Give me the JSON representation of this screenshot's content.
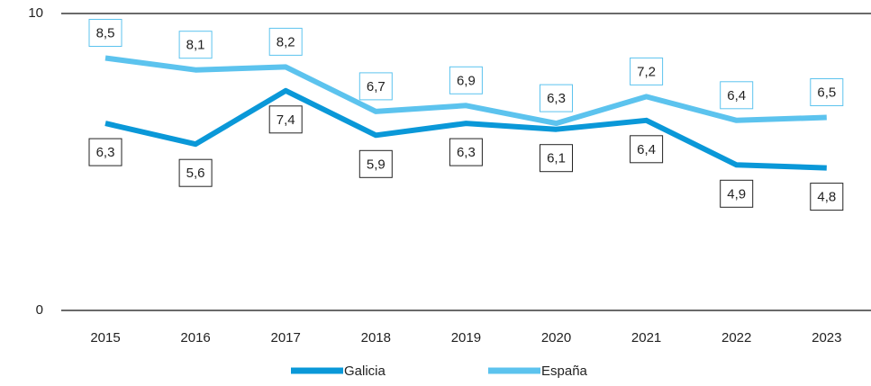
{
  "chart_data": {
    "type": "line",
    "categories": [
      "2015",
      "2016",
      "2017",
      "2018",
      "2019",
      "2020",
      "2021",
      "2022",
      "2023"
    ],
    "series": [
      {
        "name": "Galicia",
        "color": "#0a98d8",
        "values": [
          6.3,
          5.6,
          7.4,
          5.9,
          6.3,
          6.1,
          6.4,
          4.9,
          4.8
        ],
        "value_labels": [
          "6,3",
          "5,6",
          "7,4",
          "5,9",
          "6,3",
          "6,1",
          "6,4",
          "4,9",
          "4,8"
        ]
      },
      {
        "name": "España",
        "color": "#5cc3ee",
        "values": [
          8.5,
          8.1,
          8.2,
          6.7,
          6.9,
          6.3,
          7.2,
          6.4,
          6.5
        ],
        "value_labels": [
          "8,5",
          "8,1",
          "8,2",
          "6,7",
          "6,9",
          "6,3",
          "7,2",
          "6,4",
          "6,5"
        ]
      }
    ],
    "ylim": [
      0,
      10
    ],
    "yticks": [
      0,
      10
    ],
    "grid": true,
    "legend": "bottom"
  }
}
